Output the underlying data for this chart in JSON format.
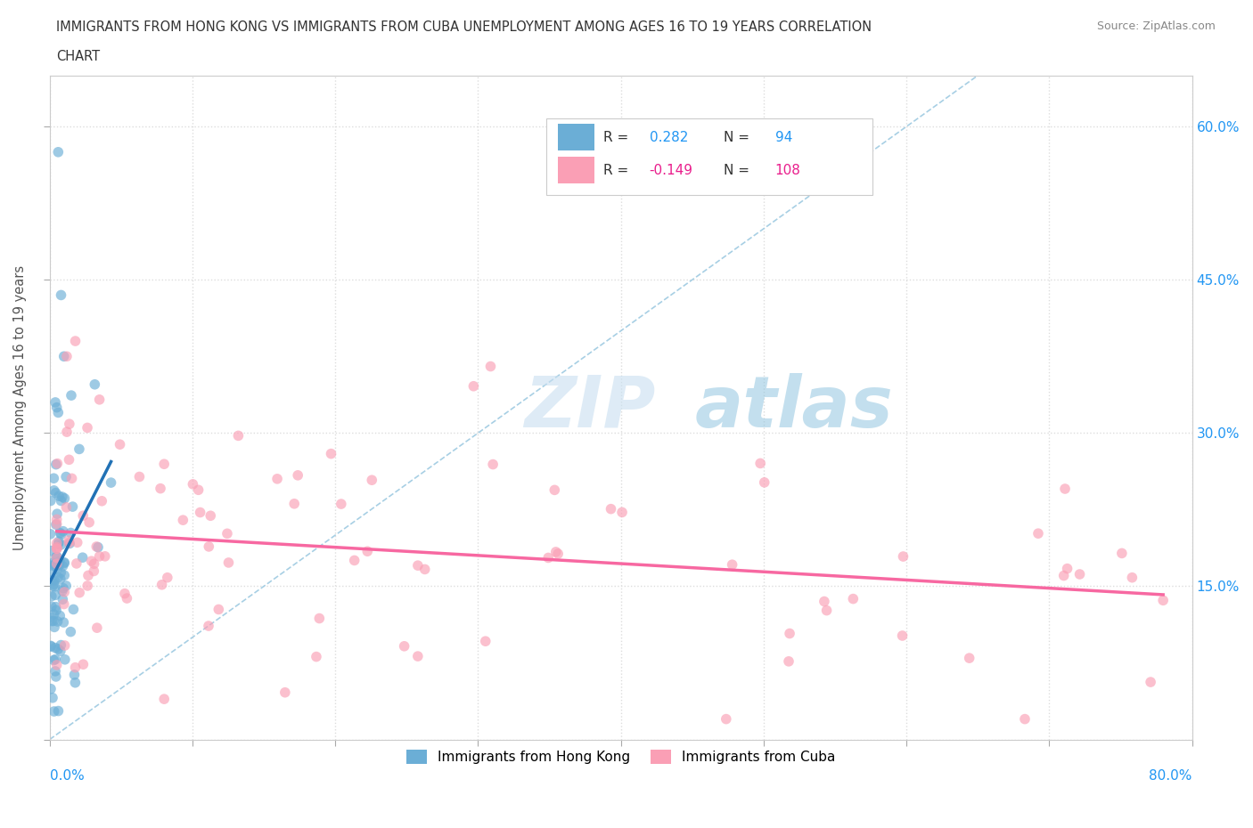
{
  "title_line1": "IMMIGRANTS FROM HONG KONG VS IMMIGRANTS FROM CUBA UNEMPLOYMENT AMONG AGES 16 TO 19 YEARS CORRELATION",
  "title_line2": "CHART",
  "source": "Source: ZipAtlas.com",
  "ylabel": "Unemployment Among Ages 16 to 19 years",
  "right_yticks": [
    0.15,
    0.3,
    0.45,
    0.6
  ],
  "right_ytick_labels": [
    "15.0%",
    "30.0%",
    "45.0%",
    "60.0%"
  ],
  "legend_hk_R": "0.282",
  "legend_hk_N": "94",
  "legend_cuba_R": "-0.149",
  "legend_cuba_N": "108",
  "hk_color": "#6baed6",
  "cuba_color": "#fa9fb5",
  "hk_line_color": "#2171b5",
  "cuba_line_color": "#f768a1",
  "ref_line_color": "#9ecae1",
  "watermark_zip": "ZIP",
  "watermark_atlas": "atlas",
  "background_color": "#ffffff",
  "xlim": [
    0.0,
    0.8
  ],
  "ylim": [
    0.0,
    0.65
  ]
}
